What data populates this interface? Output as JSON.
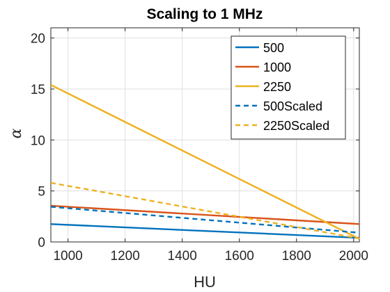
{
  "chart_data": {
    "type": "line",
    "title": "Scaling to 1 MHz",
    "xlabel": "HU",
    "ylabel": "α",
    "xlim": [
      940,
      2020
    ],
    "ylim": [
      0,
      21
    ],
    "xticks": [
      1000,
      1200,
      1400,
      1600,
      1800,
      2000
    ],
    "yticks": [
      0,
      5,
      10,
      15,
      20
    ],
    "grid": true,
    "legend_position": "top-right",
    "series": [
      {
        "name": "500",
        "color": "#0072BD",
        "dash": "solid",
        "x": [
          940,
          2020
        ],
        "y": [
          1.75,
          0.4
        ]
      },
      {
        "name": "1000",
        "color": "#D95319",
        "dash": "solid",
        "x": [
          940,
          2020
        ],
        "y": [
          3.55,
          1.75
        ]
      },
      {
        "name": "2250",
        "color": "#EDB120",
        "dash": "solid",
        "x": [
          940,
          2020
        ],
        "y": [
          15.4,
          0.3
        ]
      },
      {
        "name": "500Scaled",
        "color": "#0072BD",
        "dash": "dashed",
        "x": [
          940,
          2020
        ],
        "y": [
          3.45,
          0.9
        ]
      },
      {
        "name": "2250Scaled",
        "color": "#EDB120",
        "dash": "dashed",
        "x": [
          940,
          2020
        ],
        "y": [
          5.8,
          0.35
        ]
      }
    ]
  }
}
